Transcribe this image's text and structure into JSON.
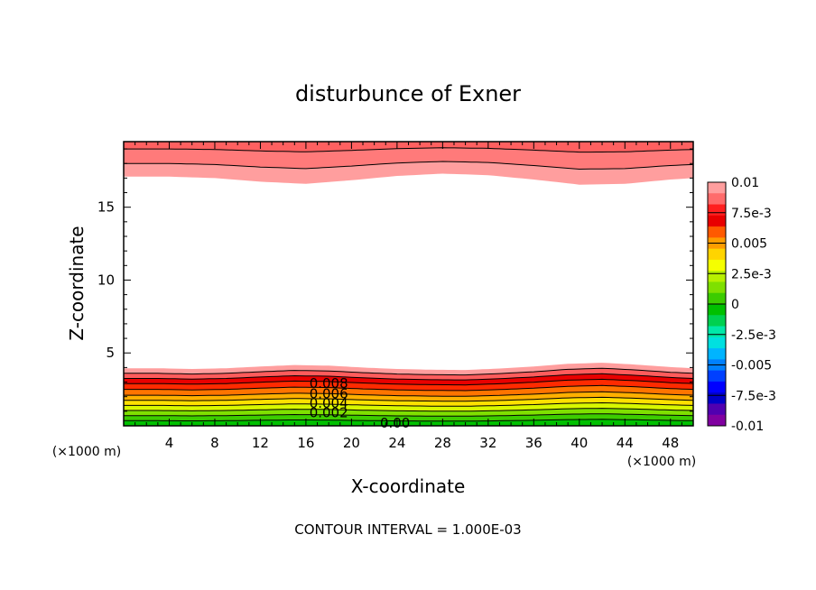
{
  "chart_data": {
    "type": "contour",
    "title": "disturbunce of Exner",
    "xlabel": "X-coordinate",
    "ylabel": "Z-coordinate",
    "x_unit_left": "(×1000 m)",
    "x_unit_right": "(×1000 m)",
    "xlim": [
      0,
      50
    ],
    "ylim": [
      0,
      19.5
    ],
    "x_ticks": [
      4,
      8,
      12,
      16,
      20,
      24,
      28,
      32,
      36,
      40,
      44,
      48
    ],
    "x_tick_labels": [
      "4",
      "8",
      "12",
      "16",
      "20",
      "24",
      "28",
      "32",
      "36",
      "40",
      "44",
      "48"
    ],
    "y_ticks": [
      5,
      10,
      15
    ],
    "y_tick_labels": [
      "5",
      "10",
      "15"
    ],
    "contour_interval_text": "CONTOUR INTERVAL = 1.000E-03",
    "contour_labels": [
      {
        "text": "0.008",
        "x": 16.3,
        "z": 2.9
      },
      {
        "text": "0.006",
        "x": 16.3,
        "z": 2.2
      },
      {
        "text": "0.004",
        "x": 16.3,
        "z": 1.55
      },
      {
        "text": "0.002",
        "x": 16.3,
        "z": 0.9
      },
      {
        "text": "0.00",
        "x": 22.5,
        "z": 0.2
      }
    ],
    "colorbar": {
      "min": -0.01,
      "max": 0.01,
      "tick_labels": [
        "0.01",
        "7.5e-3",
        "0.005",
        "2.5e-3",
        "0",
        "-2.5e-3",
        "-0.005",
        "-7.5e-3",
        "-0.01"
      ],
      "colors": [
        "#ff9e9e",
        "#ff6b6b",
        "#ff2020",
        "#e80000",
        "#ff5a00",
        "#ff9d00",
        "#ffd400",
        "#f5ff00",
        "#b8f000",
        "#7fe000",
        "#3ccc00",
        "#00c000",
        "#00d050",
        "#00e8a8",
        "#00e0e0",
        "#00b4ff",
        "#0080ff",
        "#0040ff",
        "#0000ff",
        "#0000c8",
        "#5000b0",
        "#8000a0"
      ]
    },
    "bottom_band_levels": [
      {
        "level": 0.0,
        "color": "#00c000"
      },
      {
        "level": 0.001,
        "color": "#3ccc00"
      },
      {
        "level": 0.002,
        "color": "#7fe000"
      },
      {
        "level": 0.003,
        "color": "#d8f800"
      },
      {
        "level": 0.004,
        "color": "#ffe000"
      },
      {
        "level": 0.005,
        "color": "#ffb000"
      },
      {
        "level": 0.006,
        "color": "#ff7400"
      },
      {
        "level": 0.007,
        "color": "#ff2a00"
      },
      {
        "level": 0.008,
        "color": "#e80000"
      },
      {
        "level": 0.009,
        "color": "#ff5c5c"
      },
      {
        "level": 0.01,
        "color": "#ff9e9e"
      }
    ],
    "bottom_band_tops_z": [
      0.35,
      0.7,
      1.05,
      1.4,
      1.75,
      2.1,
      2.5,
      2.9,
      3.25,
      3.6,
      3.95
    ],
    "top_band_levels": [
      {
        "level": 0.01,
        "color": "#ff9e9e"
      },
      {
        "level": 0.011,
        "color": "#ff7a7a"
      },
      {
        "level": 0.012,
        "color": "#ff6060"
      }
    ],
    "top_band_bottoms_z": [
      17.1,
      18.0,
      19.0
    ],
    "surface_bump": {
      "x": [
        0,
        3,
        6,
        9,
        12,
        15,
        18,
        21,
        24,
        27,
        30,
        33,
        36,
        39,
        42,
        45,
        48,
        50
      ],
      "dz": [
        0,
        0.0,
        -0.05,
        0.0,
        0.12,
        0.22,
        0.18,
        0.05,
        -0.05,
        -0.1,
        -0.12,
        -0.02,
        0.12,
        0.3,
        0.38,
        0.25,
        0.08,
        0.0
      ]
    },
    "top_wave": {
      "x": [
        0,
        4,
        8,
        12,
        16,
        20,
        24,
        28,
        32,
        36,
        40,
        44,
        48,
        50
      ],
      "dz": [
        0.0,
        0.0,
        -0.1,
        -0.35,
        -0.5,
        -0.25,
        0.05,
        0.2,
        0.1,
        -0.2,
        -0.55,
        -0.5,
        -0.2,
        -0.1
      ]
    }
  }
}
